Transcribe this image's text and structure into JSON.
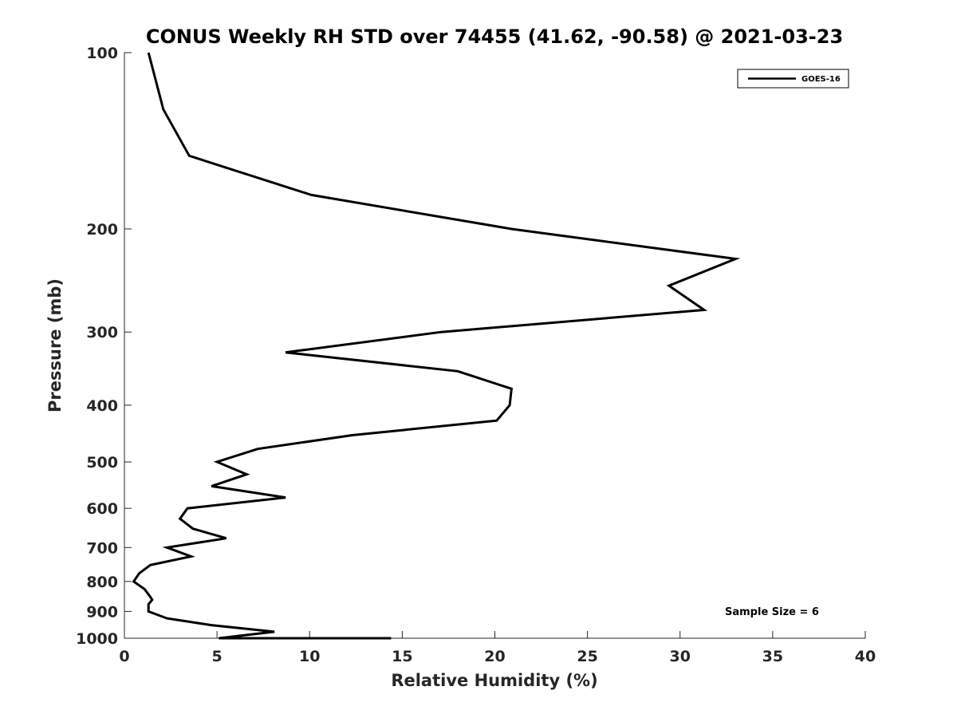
{
  "chart_data": {
    "type": "line",
    "title": "CONUS Weekly RH STD over 74455 (41.62, -90.58) @ 2021-03-23",
    "xlabel": "Relative Humidity (%)",
    "ylabel": "Pressure (mb)",
    "xlim": [
      0,
      40
    ],
    "ylim": [
      100,
      1000
    ],
    "y_scale": "log",
    "y_reversed": true,
    "x_ticks": [
      0,
      5,
      10,
      15,
      20,
      25,
      30,
      35,
      40
    ],
    "y_ticks": [
      100,
      200,
      300,
      400,
      500,
      600,
      700,
      800,
      900,
      1000
    ],
    "grid": false,
    "legend_position": "top-right",
    "annotation": "Sample Size = 6",
    "series": [
      {
        "name": "GOES-16",
        "color": "#000000",
        "points": [
          {
            "x": 1.3,
            "y": 100
          },
          {
            "x": 2.1,
            "y": 125
          },
          {
            "x": 3.5,
            "y": 150
          },
          {
            "x": 10.1,
            "y": 175
          },
          {
            "x": 20.9,
            "y": 200
          },
          {
            "x": 33.0,
            "y": 225
          },
          {
            "x": 29.4,
            "y": 250
          },
          {
            "x": 31.3,
            "y": 275
          },
          {
            "x": 17.1,
            "y": 300
          },
          {
            "x": 8.7,
            "y": 325
          },
          {
            "x": 18.0,
            "y": 350
          },
          {
            "x": 20.9,
            "y": 375
          },
          {
            "x": 20.8,
            "y": 400
          },
          {
            "x": 20.1,
            "y": 425
          },
          {
            "x": 12.3,
            "y": 450
          },
          {
            "x": 7.2,
            "y": 475
          },
          {
            "x": 5.0,
            "y": 500
          },
          {
            "x": 6.6,
            "y": 525
          },
          {
            "x": 4.7,
            "y": 550
          },
          {
            "x": 8.7,
            "y": 575
          },
          {
            "x": 3.4,
            "y": 600
          },
          {
            "x": 3.0,
            "y": 625
          },
          {
            "x": 3.7,
            "y": 650
          },
          {
            "x": 5.5,
            "y": 675
          },
          {
            "x": 2.3,
            "y": 700
          },
          {
            "x": 3.6,
            "y": 725
          },
          {
            "x": 1.4,
            "y": 750
          },
          {
            "x": 0.8,
            "y": 775
          },
          {
            "x": 0.5,
            "y": 800
          },
          {
            "x": 1.1,
            "y": 825
          },
          {
            "x": 1.4,
            "y": 850
          },
          {
            "x": 1.5,
            "y": 860
          },
          {
            "x": 1.3,
            "y": 875
          },
          {
            "x": 1.3,
            "y": 900
          },
          {
            "x": 2.3,
            "y": 925
          },
          {
            "x": 4.7,
            "y": 950
          },
          {
            "x": 8.1,
            "y": 975
          },
          {
            "x": 5.1,
            "y": 1000
          },
          {
            "x": 5.4,
            "y": 1025
          },
          {
            "x": 14.4,
            "y": 1050
          }
        ]
      }
    ]
  }
}
